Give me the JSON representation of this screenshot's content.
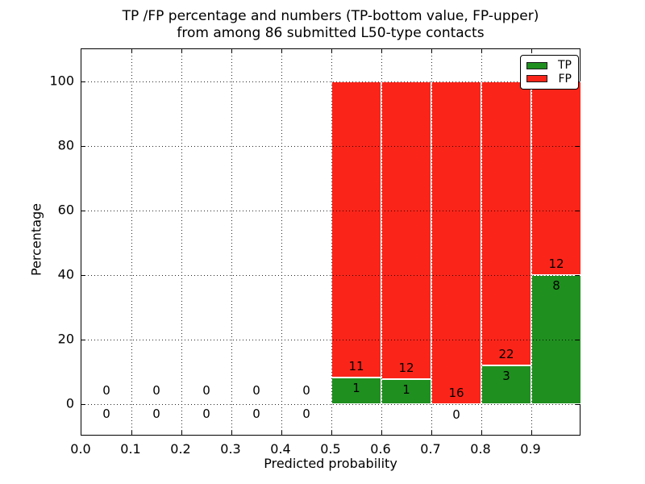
{
  "title": {
    "line1": "TP /FP percentage and numbers (TP-bottom value, FP-upper)",
    "line2": "from among 86 submitted L50-type contacts"
  },
  "colors": {
    "tp_green": "#1f8f1f",
    "fp_red": "#fb2419",
    "grid": "#000000",
    "background": "#ffffff"
  },
  "legend": {
    "entries": [
      {
        "label": "TP",
        "color_key": "tp_green"
      },
      {
        "label": "FP",
        "color_key": "fp_red"
      }
    ]
  },
  "chart_data": {
    "type": "bar",
    "stacked": true,
    "title": "TP /FP percentage and numbers (TP-bottom value, FP-upper) from among 86 submitted L50-type contacts",
    "xlabel": "Predicted probability",
    "ylabel": "Percentage",
    "xlim": [
      0.0,
      1.0
    ],
    "ylim": [
      -10,
      110
    ],
    "x_tick_values": [
      0.0,
      0.1,
      0.2,
      0.3,
      0.4,
      0.5,
      0.6,
      0.7,
      0.8,
      0.9
    ],
    "x_tick_labels": [
      "0.0",
      "0.1",
      "0.2",
      "0.3",
      "0.4",
      "0.5",
      "0.6",
      "0.7",
      "0.8",
      "0.9"
    ],
    "y_tick_values": [
      0,
      20,
      40,
      60,
      80,
      100
    ],
    "y_tick_labels": [
      "0",
      "20",
      "40",
      "60",
      "80",
      "100"
    ],
    "grid": true,
    "legend_position": "upper right",
    "total_contacts": 86,
    "series_note": "green TP bottom segment, red FP upper segment, stacked to 100% per non-empty bin; counts annotated (FP above, TP below)",
    "bins": [
      {
        "range": [
          0.0,
          0.1
        ],
        "tp": 0,
        "fp": 0,
        "tp_pct": 0.0,
        "fp_pct": 0.0
      },
      {
        "range": [
          0.1,
          0.2
        ],
        "tp": 0,
        "fp": 0,
        "tp_pct": 0.0,
        "fp_pct": 0.0
      },
      {
        "range": [
          0.2,
          0.3
        ],
        "tp": 0,
        "fp": 0,
        "tp_pct": 0.0,
        "fp_pct": 0.0
      },
      {
        "range": [
          0.3,
          0.4
        ],
        "tp": 0,
        "fp": 0,
        "tp_pct": 0.0,
        "fp_pct": 0.0
      },
      {
        "range": [
          0.4,
          0.5
        ],
        "tp": 0,
        "fp": 0,
        "tp_pct": 0.0,
        "fp_pct": 0.0
      },
      {
        "range": [
          0.5,
          0.6
        ],
        "tp": 1,
        "fp": 11,
        "tp_pct": 8.33,
        "fp_pct": 91.67
      },
      {
        "range": [
          0.6,
          0.7
        ],
        "tp": 1,
        "fp": 12,
        "tp_pct": 7.69,
        "fp_pct": 92.31
      },
      {
        "range": [
          0.7,
          0.8
        ],
        "tp": 0,
        "fp": 16,
        "tp_pct": 0.0,
        "fp_pct": 100.0
      },
      {
        "range": [
          0.8,
          0.9
        ],
        "tp": 3,
        "fp": 22,
        "tp_pct": 12.0,
        "fp_pct": 88.0
      },
      {
        "range": [
          0.9,
          1.0
        ],
        "tp": 8,
        "fp": 12,
        "tp_pct": 40.0,
        "fp_pct": 60.0
      }
    ]
  }
}
